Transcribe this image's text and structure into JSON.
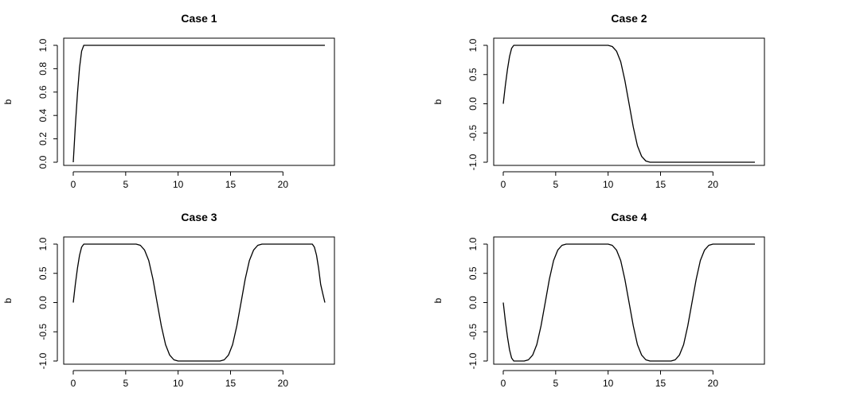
{
  "chart_data": [
    {
      "type": "line",
      "title": "Case 1",
      "xlabel": "",
      "ylabel": "b",
      "xlim": [
        0,
        24
      ],
      "ylim": [
        0,
        1
      ],
      "xticks": [
        0,
        5,
        10,
        15,
        20
      ],
      "yticks": [
        0.0,
        0.2,
        0.4,
        0.6,
        0.8,
        1.0
      ],
      "ytick_labels": [
        "0.0",
        "0.2",
        "0.4",
        "0.6",
        "0.8",
        "1.0"
      ],
      "grid": false,
      "series": [
        {
          "x": [
            0,
            0.2,
            0.4,
            0.6,
            0.8,
            1.0,
            1.2,
            1.4,
            1.6,
            2,
            4,
            6,
            8,
            10,
            12,
            14,
            16,
            18,
            20,
            22,
            24
          ],
          "values": [
            0,
            0.31,
            0.59,
            0.81,
            0.95,
            1.0,
            1.0,
            1.0,
            1.0,
            1.0,
            1.0,
            1.0,
            1.0,
            1.0,
            1.0,
            1.0,
            1.0,
            1.0,
            1.0,
            1.0,
            1.0
          ]
        }
      ]
    },
    {
      "type": "line",
      "title": "Case 2",
      "xlabel": "",
      "ylabel": "b",
      "xlim": [
        0,
        24
      ],
      "ylim": [
        -1,
        1
      ],
      "xticks": [
        0,
        5,
        10,
        15,
        20
      ],
      "yticks": [
        -1.0,
        -0.5,
        0.0,
        0.5,
        1.0
      ],
      "ytick_labels": [
        "-1.0",
        "-0.5",
        "0.0",
        "0.5",
        "1.0"
      ],
      "grid": false,
      "series": [
        {
          "x": [
            0,
            0.2,
            0.4,
            0.6,
            0.8,
            1.0,
            1.2,
            2,
            4,
            6,
            8,
            10,
            10.4,
            10.8,
            11.2,
            11.6,
            12.0,
            12.4,
            12.8,
            13.2,
            13.6,
            14.0,
            16,
            18,
            20,
            22,
            24
          ],
          "values": [
            0,
            0.31,
            0.59,
            0.81,
            0.95,
            1.0,
            1.0,
            1.0,
            1.0,
            1.0,
            1.0,
            1.0,
            0.98,
            0.9,
            0.72,
            0.4,
            0.0,
            -0.4,
            -0.72,
            -0.9,
            -0.98,
            -1.0,
            -1.0,
            -1.0,
            -1.0,
            -1.0,
            -1.0
          ]
        }
      ]
    },
    {
      "type": "line",
      "title": "Case 3",
      "xlabel": "",
      "ylabel": "b",
      "xlim": [
        0,
        24
      ],
      "ylim": [
        -1,
        1
      ],
      "xticks": [
        0,
        5,
        10,
        15,
        20
      ],
      "yticks": [
        -1.0,
        -0.5,
        0.0,
        0.5,
        1.0
      ],
      "ytick_labels": [
        "-1.0",
        "-0.5",
        "0.0",
        "0.5",
        "1.0"
      ],
      "grid": false,
      "series": [
        {
          "x": [
            0,
            0.2,
            0.4,
            0.6,
            0.8,
            1.0,
            1.2,
            2,
            4,
            6,
            6.4,
            6.8,
            7.2,
            7.6,
            8.0,
            8.4,
            8.8,
            9.2,
            9.6,
            10.0,
            12,
            14,
            14.4,
            14.8,
            15.2,
            15.6,
            16.0,
            16.4,
            16.8,
            17.2,
            17.6,
            18.0,
            20,
            22,
            22.8,
            23.0,
            23.2,
            23.4,
            23.6,
            23.8,
            24
          ],
          "values": [
            0,
            0.31,
            0.59,
            0.81,
            0.95,
            1.0,
            1.0,
            1.0,
            1.0,
            1.0,
            0.98,
            0.9,
            0.72,
            0.4,
            0.0,
            -0.4,
            -0.72,
            -0.9,
            -0.98,
            -1.0,
            -1.0,
            -1.0,
            -0.98,
            -0.9,
            -0.72,
            -0.4,
            0.0,
            0.4,
            0.72,
            0.9,
            0.98,
            1.0,
            1.0,
            1.0,
            1.0,
            0.95,
            0.81,
            0.59,
            0.31,
            0.15,
            0
          ]
        }
      ]
    },
    {
      "type": "line",
      "title": "Case 4",
      "xlabel": "",
      "ylabel": "b",
      "xlim": [
        0,
        24
      ],
      "ylim": [
        -1,
        1
      ],
      "xticks": [
        0,
        5,
        10,
        15,
        20
      ],
      "yticks": [
        -1.0,
        -0.5,
        0.0,
        0.5,
        1.0
      ],
      "ytick_labels": [
        "-1.0",
        "-0.5",
        "0.0",
        "0.5",
        "1.0"
      ],
      "grid": false,
      "series": [
        {
          "x": [
            0,
            0.2,
            0.4,
            0.6,
            0.8,
            1.0,
            1.2,
            2,
            2.4,
            2.8,
            3.2,
            3.6,
            4.0,
            4.4,
            4.8,
            5.2,
            5.6,
            6.0,
            8,
            10,
            10.4,
            10.8,
            11.2,
            11.6,
            12.0,
            12.4,
            12.8,
            13.2,
            13.6,
            14.0,
            16,
            16.4,
            16.8,
            17.2,
            17.6,
            18.0,
            18.4,
            18.8,
            19.2,
            19.6,
            20.0,
            22,
            24
          ],
          "values": [
            0,
            -0.31,
            -0.59,
            -0.81,
            -0.95,
            -1.0,
            -1.0,
            -1.0,
            -0.98,
            -0.9,
            -0.72,
            -0.4,
            0.0,
            0.4,
            0.72,
            0.9,
            0.98,
            1.0,
            1.0,
            1.0,
            0.98,
            0.9,
            0.72,
            0.4,
            0.0,
            -0.4,
            -0.72,
            -0.9,
            -0.98,
            -1.0,
            -1.0,
            -0.98,
            -0.9,
            -0.72,
            -0.4,
            0.0,
            0.4,
            0.72,
            0.9,
            0.98,
            1.0,
            1.0,
            1.0
          ]
        }
      ]
    }
  ]
}
